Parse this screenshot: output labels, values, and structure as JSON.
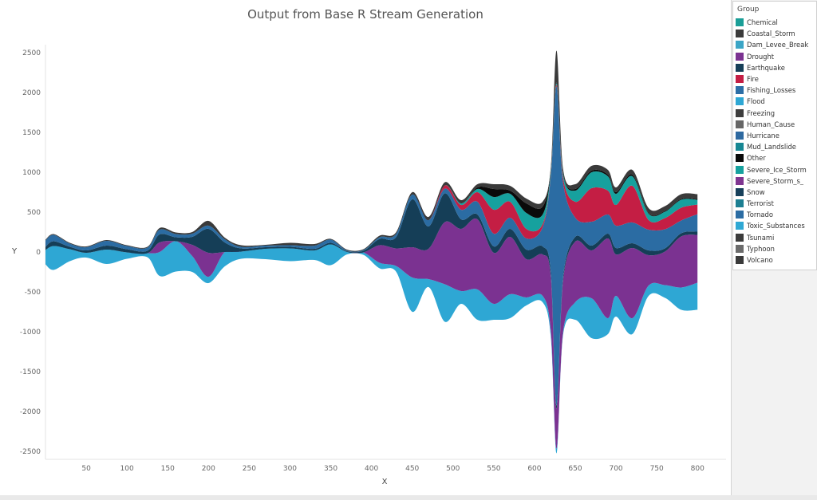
{
  "chart_data": {
    "type": "area",
    "title": "Output from Base R Stream Generation",
    "xlabel": "X",
    "ylabel": "Y",
    "xlim": [
      0,
      835
    ],
    "ylim": [
      -2600,
      2600
    ],
    "x_ticks": [
      50,
      100,
      150,
      200,
      250,
      300,
      350,
      400,
      450,
      500,
      550,
      600,
      650,
      700,
      750,
      800
    ],
    "y_ticks": [
      2500,
      2000,
      1500,
      1000,
      500,
      0,
      -500,
      -1000,
      -1500,
      -2000,
      -2500
    ],
    "legend_title": "Group",
    "legend_position": "right",
    "groups": [
      {
        "name": "Chemical",
        "color": "#1a9e97"
      },
      {
        "name": "Coastal_Storm",
        "color": "#3a3a3a"
      },
      {
        "name": "Dam_Levee_Break",
        "color": "#3ba5c6"
      },
      {
        "name": "Drought",
        "color": "#7b3291"
      },
      {
        "name": "Earthquake",
        "color": "#153e57"
      },
      {
        "name": "Fire",
        "color": "#c41e44"
      },
      {
        "name": "Fishing_Losses",
        "color": "#2c6ea6"
      },
      {
        "name": "Flood",
        "color": "#2ea7d4"
      },
      {
        "name": "Freezing",
        "color": "#3d3d3d"
      },
      {
        "name": "Human_Cause",
        "color": "#666666"
      },
      {
        "name": "Hurricane",
        "color": "#2e69a0"
      },
      {
        "name": "Mud_Landslide",
        "color": "#178793"
      },
      {
        "name": "Other",
        "color": "#0a0a0a"
      },
      {
        "name": "Severe_Ice_Storm",
        "color": "#16a19e"
      },
      {
        "name": "Severe_Storm_s_",
        "color": "#7f3590"
      },
      {
        "name": "Snow",
        "color": "#17405a"
      },
      {
        "name": "Terrorist",
        "color": "#1c7f92"
      },
      {
        "name": "Tornado",
        "color": "#2b6ca3"
      },
      {
        "name": "Toxic_Substances",
        "color": "#2fa8d4"
      },
      {
        "name": "Tsunami",
        "color": "#3b3b3b"
      },
      {
        "name": "Typhoon",
        "color": "#6b6b6b"
      },
      {
        "name": "Volcano",
        "color": "#3a3a3a"
      }
    ],
    "series": [
      {
        "name": "Flood",
        "x": [
          0,
          10,
          30,
          50,
          75,
          100,
          125,
          140,
          160,
          180,
          200,
          220,
          240,
          270,
          300,
          330,
          350,
          370,
          390,
          410,
          430,
          450,
          470,
          490,
          510,
          530,
          550,
          570,
          590,
          610,
          620,
          627,
          635,
          650,
          670,
          690,
          700,
          720,
          740,
          760,
          780,
          800
        ],
        "values": [
          180,
          300,
          150,
          60,
          180,
          80,
          50,
          300,
          380,
          200,
          80,
          180,
          90,
          130,
          160,
          120,
          260,
          30,
          30,
          70,
          70,
          430,
          100,
          470,
          160,
          380,
          200,
          300,
          100,
          80,
          80,
          60,
          40,
          220,
          500,
          200,
          260,
          200,
          130,
          160,
          280,
          340
        ]
      },
      {
        "name": "Drought",
        "x": [
          0,
          10,
          30,
          50,
          75,
          100,
          125,
          140,
          160,
          180,
          200,
          220,
          240,
          270,
          300,
          330,
          350,
          370,
          390,
          410,
          430,
          450,
          470,
          490,
          510,
          530,
          550,
          570,
          590,
          610,
          620,
          627,
          635,
          650,
          670,
          690,
          700,
          720,
          740,
          760,
          780,
          800
        ],
        "values": [
          0,
          0,
          0,
          0,
          0,
          0,
          0,
          120,
          0,
          140,
          300,
          0,
          0,
          0,
          0,
          0,
          0,
          0,
          0,
          220,
          220,
          380,
          380,
          780,
          780,
          880,
          640,
          720,
          480,
          520,
          680,
          500,
          640,
          760,
          600,
          1000,
          520,
          880,
          380,
          420,
          640,
          600
        ]
      },
      {
        "name": "Earthquake",
        "x": [
          0,
          10,
          30,
          50,
          75,
          100,
          125,
          140,
          160,
          180,
          200,
          220,
          240,
          270,
          300,
          330,
          350,
          370,
          390,
          410,
          430,
          450,
          470,
          490,
          510,
          530,
          550,
          570,
          590,
          610,
          620,
          627,
          635,
          650,
          670,
          690,
          700,
          720,
          740,
          760,
          780,
          800
        ],
        "values": [
          40,
          60,
          30,
          30,
          50,
          40,
          30,
          100,
          50,
          100,
          300,
          120,
          40,
          20,
          20,
          20,
          20,
          10,
          20,
          80,
          140,
          600,
          280,
          360,
          120,
          60,
          80,
          100,
          120,
          100,
          60,
          40,
          40,
          60,
          60,
          60,
          80,
          60,
          60,
          40,
          40,
          40
        ]
      },
      {
        "name": "Tornado",
        "x": [
          0,
          10,
          30,
          50,
          75,
          100,
          125,
          140,
          160,
          180,
          200,
          220,
          240,
          270,
          300,
          330,
          350,
          370,
          390,
          410,
          430,
          450,
          470,
          490,
          510,
          530,
          550,
          570,
          590,
          610,
          620,
          627,
          635,
          650,
          670,
          690,
          700,
          720,
          740,
          760,
          780,
          800
        ],
        "values": [
          80,
          80,
          40,
          40,
          60,
          40,
          40,
          60,
          40,
          40,
          40,
          40,
          20,
          20,
          20,
          40,
          40,
          10,
          10,
          20,
          40,
          60,
          80,
          60,
          120,
          160,
          160,
          140,
          140,
          240,
          1200,
          4000,
          1200,
          240,
          300,
          240,
          280,
          260,
          260,
          240,
          160,
          220
        ]
      },
      {
        "name": "Fire",
        "x": [
          0,
          10,
          30,
          50,
          75,
          100,
          125,
          140,
          160,
          180,
          200,
          220,
          240,
          270,
          300,
          330,
          350,
          370,
          390,
          410,
          430,
          450,
          470,
          490,
          510,
          530,
          550,
          570,
          590,
          610,
          620,
          627,
          635,
          650,
          670,
          690,
          700,
          720,
          740,
          760,
          780,
          800
        ],
        "values": [
          0,
          0,
          0,
          0,
          0,
          0,
          0,
          0,
          0,
          0,
          0,
          0,
          0,
          0,
          0,
          0,
          0,
          0,
          0,
          0,
          0,
          0,
          0,
          40,
          60,
          120,
          300,
          200,
          120,
          40,
          20,
          20,
          60,
          200,
          420,
          300,
          260,
          460,
          120,
          140,
          160,
          120
        ]
      },
      {
        "name": "Severe_Ice_Storm",
        "x": [
          0,
          10,
          30,
          50,
          75,
          100,
          125,
          140,
          160,
          180,
          200,
          220,
          240,
          270,
          300,
          330,
          350,
          370,
          390,
          410,
          430,
          450,
          470,
          490,
          510,
          530,
          550,
          570,
          590,
          610,
          620,
          627,
          635,
          650,
          670,
          690,
          700,
          720,
          740,
          760,
          780,
          800
        ],
        "values": [
          0,
          0,
          0,
          0,
          0,
          0,
          0,
          0,
          0,
          0,
          0,
          0,
          0,
          0,
          0,
          0,
          0,
          0,
          0,
          0,
          0,
          0,
          0,
          0,
          20,
          40,
          160,
          100,
          200,
          120,
          40,
          20,
          40,
          140,
          200,
          180,
          140,
          120,
          80,
          80,
          100,
          60
        ]
      },
      {
        "name": "Other",
        "x": [
          0,
          10,
          30,
          50,
          75,
          100,
          125,
          140,
          160,
          180,
          200,
          220,
          240,
          270,
          300,
          330,
          350,
          370,
          390,
          410,
          430,
          450,
          470,
          490,
          510,
          530,
          550,
          570,
          590,
          610,
          620,
          627,
          635,
          650,
          670,
          690,
          700,
          720,
          740,
          760,
          780,
          800
        ],
        "values": [
          0,
          0,
          0,
          0,
          0,
          0,
          0,
          0,
          0,
          0,
          0,
          0,
          0,
          0,
          0,
          0,
          0,
          0,
          0,
          0,
          0,
          0,
          0,
          0,
          0,
          20,
          100,
          40,
          120,
          100,
          20,
          10,
          10,
          20,
          20,
          20,
          20,
          20,
          10,
          10,
          10,
          10
        ]
      },
      {
        "name": "Coastal_Storm",
        "x": [
          0,
          10,
          30,
          50,
          75,
          100,
          125,
          140,
          160,
          180,
          200,
          220,
          240,
          270,
          300,
          330,
          350,
          370,
          390,
          410,
          430,
          450,
          470,
          490,
          510,
          530,
          550,
          570,
          590,
          610,
          620,
          627,
          635,
          650,
          670,
          690,
          700,
          720,
          740,
          760,
          780,
          800
        ],
        "values": [
          10,
          10,
          10,
          10,
          10,
          10,
          10,
          20,
          20,
          20,
          60,
          20,
          20,
          10,
          30,
          20,
          10,
          10,
          10,
          20,
          20,
          30,
          40,
          40,
          40,
          40,
          60,
          60,
          60,
          60,
          40,
          400,
          60,
          60,
          60,
          60,
          60,
          60,
          60,
          60,
          60,
          60
        ]
      }
    ]
  }
}
